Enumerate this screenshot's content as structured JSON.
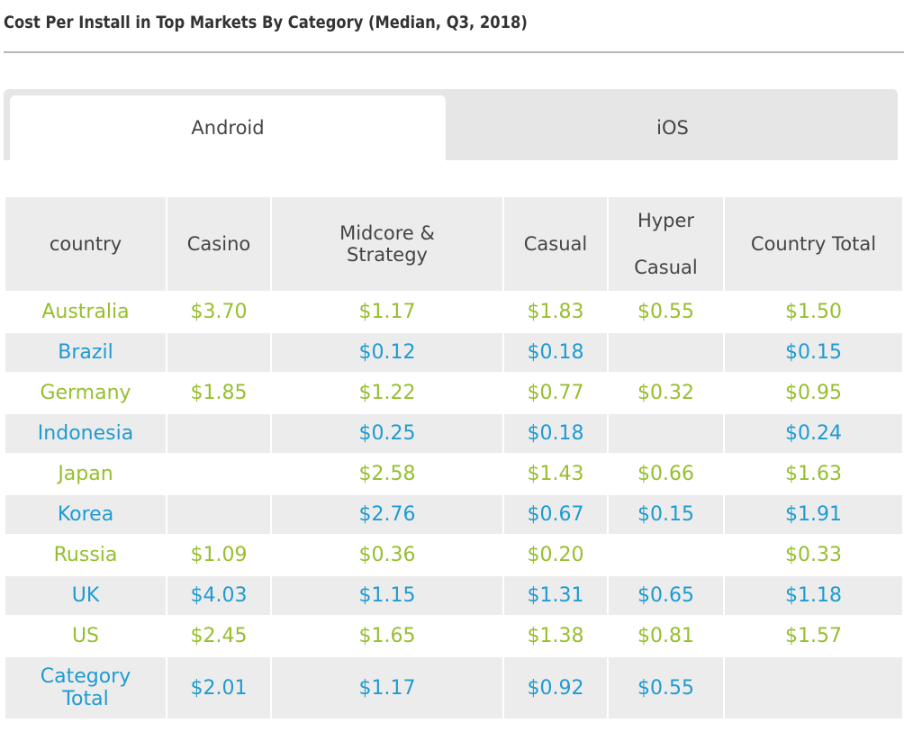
{
  "page": {
    "title": "Cost Per Install in Top Markets By Category (Median, Q3, 2018)"
  },
  "tabs": [
    {
      "label": "Android",
      "selected": true
    },
    {
      "label": "iOS",
      "selected": false
    }
  ],
  "table": {
    "headers": {
      "country": "country",
      "casino": "Casino",
      "midcore_line1": "Midcore &",
      "midcore_line2": "Strategy",
      "casual": "Casual",
      "hyper_line1": "Hyper",
      "hyper_line2": "Casual",
      "country_total": "Country Total"
    },
    "rows": [
      {
        "country": "Australia",
        "casino": "$3.70",
        "midcore": "$1.17",
        "casual": "$1.83",
        "hyper": "$0.55",
        "total": "$1.50"
      },
      {
        "country": "Brazil",
        "casino": "",
        "midcore": "$0.12",
        "casual": "$0.18",
        "hyper": "",
        "total": "$0.15"
      },
      {
        "country": "Germany",
        "casino": "$1.85",
        "midcore": "$1.22",
        "casual": "$0.77",
        "hyper": "$0.32",
        "total": "$0.95"
      },
      {
        "country": "Indonesia",
        "casino": "",
        "midcore": "$0.25",
        "casual": "$0.18",
        "hyper": "",
        "total": "$0.24"
      },
      {
        "country": "Japan",
        "casino": "",
        "midcore": "$2.58",
        "casual": "$1.43",
        "hyper": "$0.66",
        "total": "$1.63"
      },
      {
        "country": "Korea",
        "casino": "",
        "midcore": "$2.76",
        "casual": "$0.67",
        "hyper": "$0.15",
        "total": "$1.91"
      },
      {
        "country": "Russia",
        "casino": "$1.09",
        "midcore": "$0.36",
        "casual": "$0.20",
        "hyper": "",
        "total": "$0.33"
      },
      {
        "country": "UK",
        "casino": "$4.03",
        "midcore": "$1.15",
        "casual": "$1.31",
        "hyper": "$0.65",
        "total": "$1.18"
      },
      {
        "country": "US",
        "casino": "$2.45",
        "midcore": "$1.65",
        "casual": "$1.38",
        "hyper": "$0.81",
        "total": "$1.57"
      }
    ],
    "category_total": {
      "label_line1": "Category",
      "label_line2": "Total",
      "casino": "$2.01",
      "midcore": "$1.17",
      "casual": "$0.92",
      "hyper": "$0.55",
      "total": ""
    }
  },
  "colors": {
    "green_text": "#96bf2f",
    "blue_text": "#1f9bd1",
    "row_shade": "#ececec",
    "tab_bar": "#e6e6e6"
  }
}
